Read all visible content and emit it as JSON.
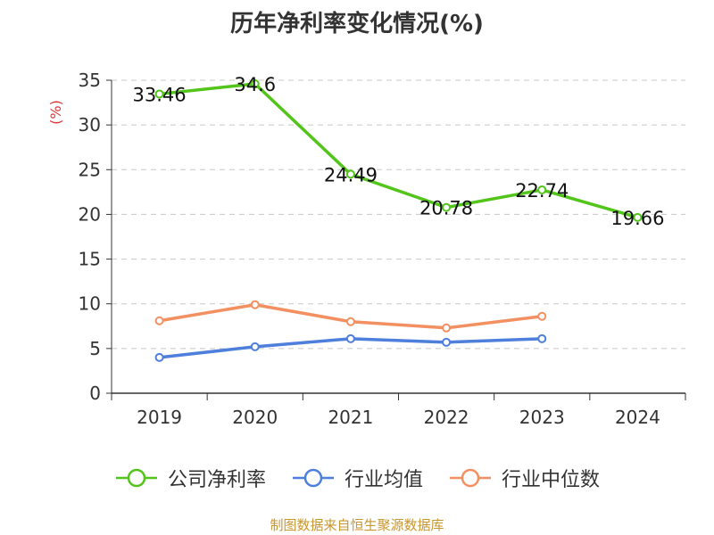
{
  "chart_data": {
    "type": "line",
    "title": "历年净利率变化情况(%)",
    "ylabel": "(%)",
    "xlabel": "",
    "categories": [
      "2019",
      "2020",
      "2021",
      "2022",
      "2023",
      "2024"
    ],
    "ylim": [
      0,
      35
    ],
    "yticks": [
      0,
      5,
      10,
      15,
      20,
      25,
      30,
      35
    ],
    "grid": true,
    "legend_position": "bottom",
    "series": [
      {
        "name": "公司净利率",
        "color": "#52c41a",
        "show_labels": true,
        "values": [
          33.46,
          34.6,
          24.49,
          20.78,
          22.74,
          19.66
        ]
      },
      {
        "name": "行业均值",
        "color": "#4f7fdc",
        "show_labels": false,
        "values": [
          4.0,
          5.2,
          6.1,
          5.7,
          6.1,
          null
        ]
      },
      {
        "name": "行业中位数",
        "color": "#f39061",
        "show_labels": false,
        "values": [
          8.1,
          9.9,
          8.0,
          7.3,
          8.6,
          null
        ]
      }
    ]
  },
  "source": "制图数据来自恒生聚源数据库"
}
